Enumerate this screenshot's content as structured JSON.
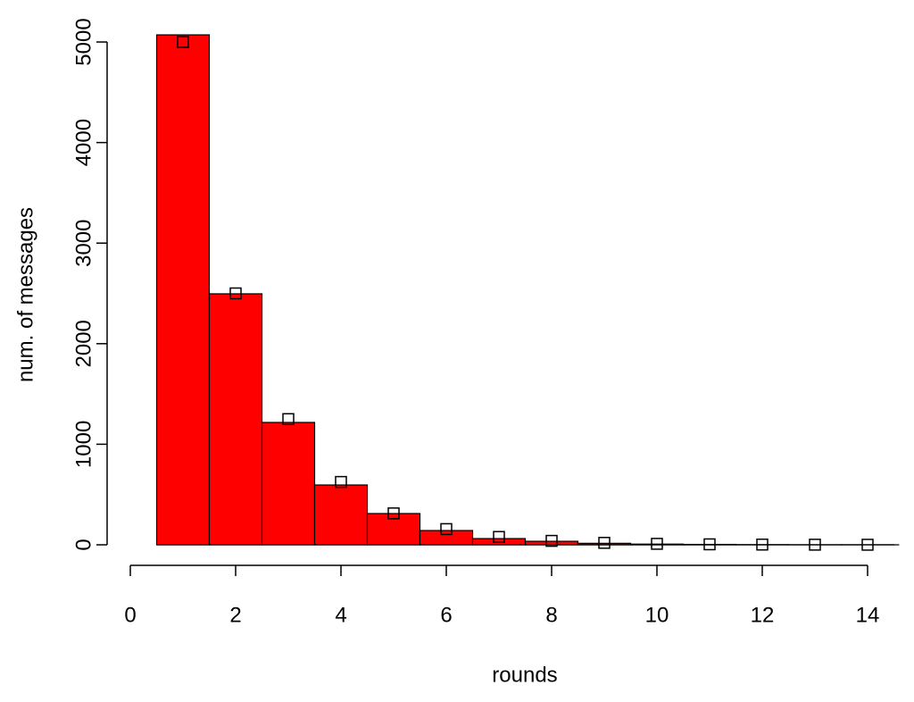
{
  "chart_data": {
    "type": "histogram",
    "xlabel": "rounds",
    "ylabel": "num. of messages",
    "bins": [
      0.5,
      1.5,
      2.5,
      3.5,
      4.5,
      5.5,
      6.5,
      7.5,
      8.5,
      9.5,
      10.5,
      11.5,
      12.5,
      13.5,
      14.5
    ],
    "counts": [
      5071,
      2496,
      1217,
      595,
      311,
      142,
      62,
      35,
      15,
      7,
      4,
      2,
      1,
      1
    ],
    "color": "#ff0000",
    "points": {
      "x": [
        1,
        2,
        3,
        4,
        5,
        6,
        7,
        8,
        9,
        10,
        11,
        12,
        13,
        14
      ],
      "values": [
        5000,
        2500,
        1250,
        625,
        312.5,
        156.25,
        78.125,
        39.06,
        19.53,
        9.77,
        4.88,
        2.44,
        1.22,
        0.61
      ]
    },
    "xlim": [
      -0.4,
      14.6
    ],
    "ylim": [
      0,
      5200
    ],
    "xticks": [
      0,
      2,
      4,
      6,
      8,
      10,
      12,
      14
    ],
    "yticks": [
      0,
      1000,
      2000,
      3000,
      4000,
      5000
    ]
  }
}
